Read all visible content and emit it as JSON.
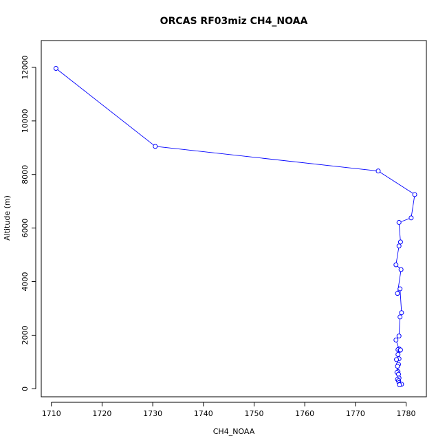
{
  "chart_data": {
    "type": "line",
    "title": "ORCAS RF03miz CH4_NOAA",
    "xlabel": "CH4_NOAA",
    "ylabel": "Altitude (m)",
    "xlim": [
      1708,
      1784
    ],
    "ylim": [
      -300,
      13000
    ],
    "xticks": [
      1710,
      1720,
      1730,
      1740,
      1750,
      1760,
      1770,
      1780
    ],
    "yticks": [
      0,
      2000,
      4000,
      6000,
      8000,
      10000,
      12000
    ],
    "grid": false,
    "legend": "none",
    "series": [
      {
        "color": "#0000ff",
        "marker": "open-circle",
        "points": [
          {
            "x": 1710.9,
            "y": 11960
          },
          {
            "x": 1730.5,
            "y": 9050
          },
          {
            "x": 1774.5,
            "y": 8130
          },
          {
            "x": 1781.7,
            "y": 7250
          },
          {
            "x": 1781.0,
            "y": 6380
          },
          {
            "x": 1778.6,
            "y": 6210
          },
          {
            "x": 1778.9,
            "y": 5480
          },
          {
            "x": 1778.6,
            "y": 5330
          },
          {
            "x": 1778.0,
            "y": 4630
          },
          {
            "x": 1779.0,
            "y": 4450
          },
          {
            "x": 1778.3,
            "y": 3560
          },
          {
            "x": 1778.8,
            "y": 3730
          },
          {
            "x": 1779.1,
            "y": 2840
          },
          {
            "x": 1778.8,
            "y": 2680
          },
          {
            "x": 1778.6,
            "y": 1970
          },
          {
            "x": 1778.0,
            "y": 1820
          },
          {
            "x": 1778.6,
            "y": 1490
          },
          {
            "x": 1778.4,
            "y": 1460
          },
          {
            "x": 1778.8,
            "y": 1440
          },
          {
            "x": 1778.9,
            "y": 1450
          },
          {
            "x": 1778.4,
            "y": 1280
          },
          {
            "x": 1778.6,
            "y": 1120
          },
          {
            "x": 1778.1,
            "y": 1090
          },
          {
            "x": 1778.5,
            "y": 910
          },
          {
            "x": 1778.3,
            "y": 840
          },
          {
            "x": 1778.4,
            "y": 640
          },
          {
            "x": 1778.2,
            "y": 610
          },
          {
            "x": 1778.5,
            "y": 540
          },
          {
            "x": 1778.6,
            "y": 400
          },
          {
            "x": 1778.3,
            "y": 350
          },
          {
            "x": 1778.5,
            "y": 300
          },
          {
            "x": 1778.6,
            "y": 230
          },
          {
            "x": 1778.8,
            "y": 180
          },
          {
            "x": 1779.1,
            "y": 170
          },
          {
            "x": 1778.7,
            "y": 150
          }
        ]
      }
    ]
  }
}
